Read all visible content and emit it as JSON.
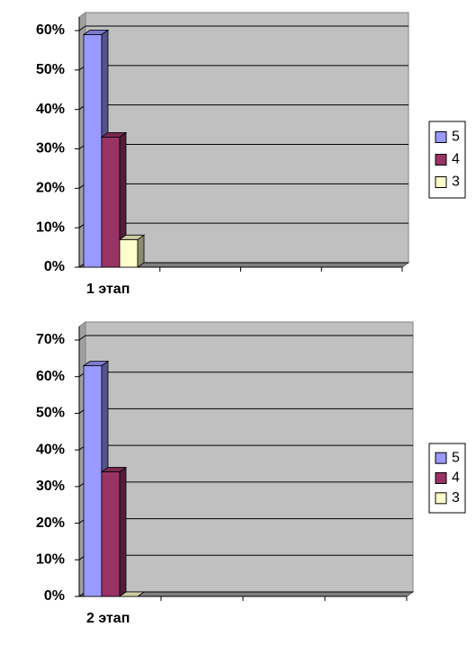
{
  "chart_data": [
    {
      "type": "bar",
      "categories": [
        "1 этап",
        null,
        null,
        null
      ],
      "series": [
        {
          "name": "5",
          "color": "#9999ff",
          "values": [
            59,
            null,
            null,
            null
          ]
        },
        {
          "name": "4",
          "color": "#993366",
          "values": [
            33,
            null,
            null,
            null
          ]
        },
        {
          "name": "3",
          "color": "#ffffcc",
          "values": [
            7,
            null,
            null,
            null
          ]
        }
      ],
      "ylim": [
        0,
        60
      ],
      "yticks": [
        {
          "value": 0,
          "label": "0%"
        },
        {
          "value": 10,
          "label": "10%"
        },
        {
          "value": 20,
          "label": "20%"
        },
        {
          "value": 30,
          "label": "30%"
        },
        {
          "value": 40,
          "label": "40%"
        },
        {
          "value": 50,
          "label": "50%"
        },
        {
          "value": 60,
          "label": "60%"
        }
      ],
      "grid": true,
      "legend": "right"
    },
    {
      "type": "bar",
      "categories": [
        "2 этап",
        null,
        null,
        null
      ],
      "series": [
        {
          "name": "5",
          "color": "#9999ff",
          "values": [
            63,
            null,
            null,
            null
          ]
        },
        {
          "name": "4",
          "color": "#993366",
          "values": [
            34,
            null,
            null,
            null
          ]
        },
        {
          "name": "3",
          "color": "#ffffcc",
          "values": [
            0,
            null,
            null,
            null
          ]
        }
      ],
      "ylim": [
        0,
        70
      ],
      "yticks": [
        {
          "value": 0,
          "label": "0%"
        },
        {
          "value": 10,
          "label": "10%"
        },
        {
          "value": 20,
          "label": "20%"
        },
        {
          "value": 30,
          "label": "30%"
        },
        {
          "value": 40,
          "label": "40%"
        },
        {
          "value": 50,
          "label": "50%"
        },
        {
          "value": 60,
          "label": "60%"
        },
        {
          "value": 70,
          "label": "70%"
        }
      ],
      "grid": true,
      "legend": "right"
    }
  ]
}
